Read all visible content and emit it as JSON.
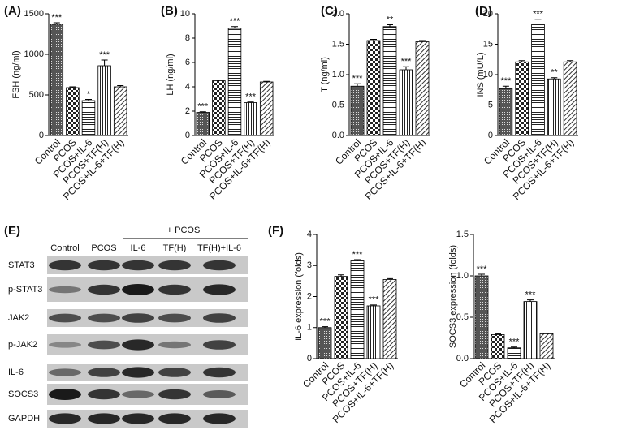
{
  "chart_data": [
    {
      "type": "bar",
      "panel": "(A)",
      "ylabel": "FSH (ng/ml)",
      "categories": [
        "Control",
        "PCOS",
        "PCOS+IL-6",
        "PCOS+TF(H)",
        "PCOS+IL-6+TF(H)"
      ],
      "values": [
        1370,
        590,
        430,
        860,
        600
      ],
      "errors": [
        20,
        10,
        15,
        70,
        15
      ],
      "annotations": [
        "***",
        null,
        "*",
        "***",
        null
      ],
      "ylim": [
        0,
        1500
      ],
      "yticks": [
        0,
        500,
        1000,
        1500
      ]
    },
    {
      "type": "bar",
      "panel": "(B)",
      "ylabel": "LH (ng/ml)",
      "categories": [
        "Control",
        "PCOS",
        "PCOS+IL-6",
        "PCOS+TF(H)",
        "PCOS+IL-6+TF(H)"
      ],
      "values": [
        1.9,
        4.5,
        8.8,
        2.7,
        4.4
      ],
      "errors": [
        0.05,
        0.05,
        0.15,
        0.05,
        0.05
      ],
      "annotations": [
        "***",
        null,
        "***",
        "***",
        null
      ],
      "ylim": [
        0,
        10
      ],
      "yticks": [
        0,
        2,
        4,
        6,
        8,
        10
      ]
    },
    {
      "type": "bar",
      "panel": "(C)",
      "ylabel": "T (ng/ml)",
      "categories": [
        "Control",
        "PCOS",
        "PCOS+IL-6",
        "PCOS+TF(H)",
        "PCOS+IL-6+TF(H)"
      ],
      "values": [
        0.81,
        1.56,
        1.79,
        1.08,
        1.54
      ],
      "errors": [
        0.04,
        0.02,
        0.03,
        0.05,
        0.02
      ],
      "annotations": [
        "***",
        null,
        "**",
        "***",
        null
      ],
      "ylim": [
        0,
        2
      ],
      "yticks": [
        {
          "value": 0,
          "label": "0.0"
        },
        0.5,
        {
          "value": 1,
          "label": "1.0"
        },
        1.5,
        {
          "value": 2,
          "label": "2.0"
        }
      ]
    },
    {
      "type": "bar",
      "panel": "(D)",
      "ylabel": "INS (mU/L)",
      "categories": [
        "Control",
        "PCOS",
        "PCOS+IL-6",
        "PCOS+TF(H)",
        "PCOS+IL-6+TF(H)"
      ],
      "values": [
        7.7,
        12.1,
        18.3,
        9.3,
        12.1
      ],
      "errors": [
        0.4,
        0.2,
        0.8,
        0.2,
        0.2
      ],
      "annotations": [
        "***",
        null,
        "***",
        "**",
        null
      ],
      "ylim": [
        0,
        20
      ],
      "yticks": [
        0,
        5,
        10,
        15,
        20
      ]
    },
    {
      "type": "bar",
      "panel": "(F)",
      "ylabel": "IL-6 expression (folds)",
      "categories": [
        "Control",
        "PCOS",
        "PCOS+IL-6",
        "PCOS+TF(H)",
        "PCOS+IL-6+TF(H)"
      ],
      "values": [
        1.0,
        2.65,
        3.15,
        1.7,
        2.55
      ],
      "errors": [
        0.03,
        0.05,
        0.04,
        0.03,
        0.03
      ],
      "annotations": [
        "***",
        null,
        "***",
        "***",
        null
      ],
      "ylim": [
        0,
        4
      ],
      "yticks": [
        0,
        1,
        2,
        3,
        4
      ]
    },
    {
      "type": "bar",
      "ylabel": "SOCS3 expression (folds)",
      "categories": [
        "Control",
        "PCOS",
        "PCOS+IL-6",
        "PCOS+TF(H)",
        "PCOS+IL-6+TF(H)"
      ],
      "values": [
        1.0,
        0.29,
        0.13,
        0.69,
        0.3
      ],
      "errors": [
        0.02,
        0.01,
        0.01,
        0.02,
        0.005
      ],
      "annotations": [
        "***",
        null,
        "***",
        "***",
        null
      ],
      "ylim": [
        0,
        1.5
      ],
      "yticks": [
        {
          "value": 0,
          "label": "0.0"
        },
        0.5,
        {
          "value": 1,
          "label": "1.0"
        },
        1.5
      ]
    }
  ],
  "blot": {
    "panel": "(E)",
    "group_label": "+ PCOS",
    "lanes": [
      "Control",
      "PCOS",
      "IL-6",
      "TF(H)",
      "TF(H)+IL-6"
    ],
    "proteins": [
      "STAT3",
      "p-STAT3",
      "JAK2",
      "p-JAK2",
      "IL-6",
      "SOCS3",
      "GAPDH"
    ]
  }
}
